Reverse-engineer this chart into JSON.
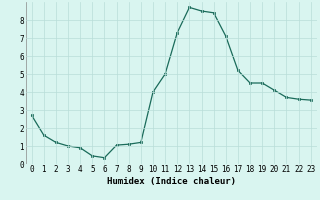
{
  "x": [
    0,
    1,
    2,
    3,
    4,
    5,
    6,
    7,
    8,
    9,
    10,
    11,
    12,
    13,
    14,
    15,
    16,
    17,
    18,
    19,
    20,
    21,
    22,
    23
  ],
  "y": [
    2.7,
    1.6,
    1.2,
    1.0,
    0.9,
    0.45,
    0.35,
    1.05,
    1.1,
    1.2,
    4.0,
    5.0,
    7.3,
    8.7,
    8.5,
    8.4,
    7.1,
    5.2,
    4.5,
    4.5,
    4.1,
    3.7,
    3.6,
    3.55
  ],
  "line_color": "#1a6b5a",
  "marker": "s",
  "markersize": 2.0,
  "linewidth": 0.9,
  "xlabel": "Humidex (Indice chaleur)",
  "xlim": [
    -0.5,
    23.5
  ],
  "ylim": [
    0,
    9
  ],
  "bg_color": "#d9f5f0",
  "grid_color": "#b8ddd8",
  "xlabel_fontsize": 6.5,
  "tick_fontsize": 5.5
}
